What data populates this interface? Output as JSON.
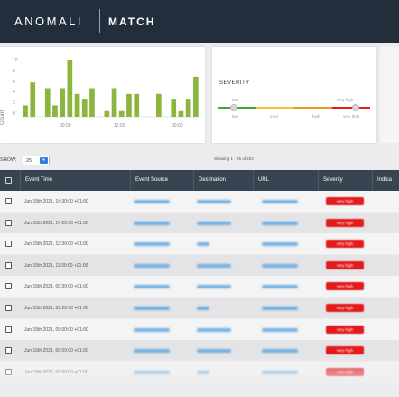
{
  "header": {
    "brand": "ANOMALI",
    "product": "MATCH"
  },
  "count_chart": {
    "title": "Count",
    "yticks": [
      "10",
      "8",
      "6",
      "4",
      "2",
      "0"
    ],
    "xticks": [
      "00:00",
      "12:00",
      "00:00"
    ],
    "bar_color": "#8cb53e",
    "chart_data": {
      "type": "bar",
      "ylabel": "Count",
      "ylim": [
        0,
        10
      ],
      "values": [
        2,
        6,
        0,
        5,
        2,
        5,
        10,
        4,
        3,
        5,
        0,
        1,
        5,
        1,
        4,
        4,
        0,
        0,
        4,
        0,
        3,
        1,
        3,
        7
      ]
    }
  },
  "severity": {
    "title": "SEVERITY",
    "top_labels": [
      "low",
      "very high"
    ],
    "bottom_labels": [
      "low",
      "med",
      "high",
      "very high"
    ],
    "gauge_colors": [
      "#3aa935",
      "#f2c12e",
      "#e89522",
      "#e31b1b"
    ]
  },
  "show": {
    "label": "SHOW:",
    "value": "25",
    "arrow": "▾",
    "summary": "Showing 1 - 25 of 224"
  },
  "table": {
    "headers": [
      "Event Time",
      "Event Source",
      "Destination",
      "URL",
      "Severity",
      "Indica"
    ],
    "rows": [
      {
        "time": "Jun 15th 2021, 14:30:00 +01:00",
        "severity": "very high"
      },
      {
        "time": "Jun 15th 2021, 14:20:00 +01:00",
        "severity": "very high"
      },
      {
        "time": "Jun 15th 2021, 13:30:00 +01:00",
        "severity": "very high"
      },
      {
        "time": "Jun 15th 2021, 11:30:00 +01:00",
        "severity": "very high"
      },
      {
        "time": "Jun 15th 2021, 09:30:00 +01:00",
        "severity": "very high"
      },
      {
        "time": "Jun 15th 2021, 09:20:00 +01:00",
        "severity": "very high"
      },
      {
        "time": "Jun 15th 2021, 09:00:00 +01:00",
        "severity": "very high"
      },
      {
        "time": "Jun 15th 2021, 00:00:00 +01:00",
        "severity": "very high"
      },
      {
        "time": "Jun 15th 2021, 00:00:00 +01:00",
        "severity": "very high"
      }
    ]
  }
}
